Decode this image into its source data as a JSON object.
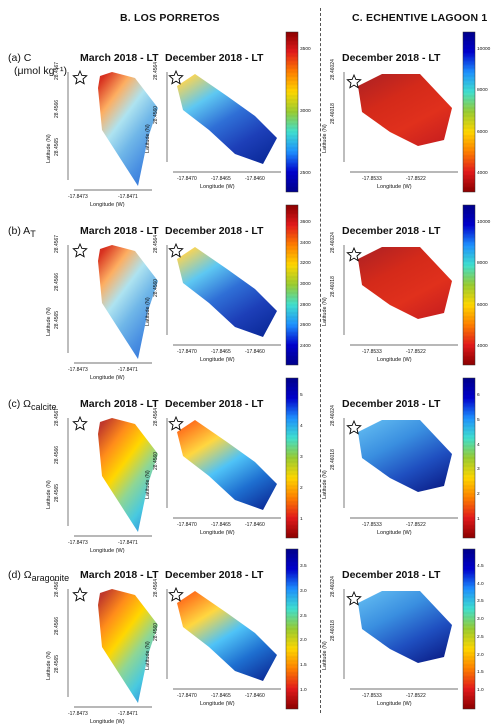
{
  "sections": {
    "left": "B. LOS PORRETOS",
    "right": "C. ECHENTIVE LAGOON 1"
  },
  "rows": [
    {
      "label_prefix": "(a) C",
      "label_sub": "",
      "label_line2": "(μmol kg⁻¹)",
      "panels": [
        {
          "title": "March 2018 - LT",
          "lat_ticks": [
            "28.4567",
            "28.4566",
            "28.4565"
          ],
          "lon_ticks": [
            "-17.8473",
            "-17.8471"
          ],
          "cb_ticks": []
        },
        {
          "title": "December 2018 - LT",
          "lat_ticks": [
            "28.4564",
            "28.4560"
          ],
          "lon_ticks": [
            "-17.8470",
            "-17.8465",
            "-17.8460"
          ],
          "cb_ticks": [
            "3500",
            "3000",
            "2500"
          ]
        },
        {
          "title": "December 2018 - LT",
          "lat_ticks": [
            "28.46024",
            "28.46018"
          ],
          "lon_ticks": [
            "-17.8533",
            "-17.8522"
          ],
          "cb_ticks": [
            "10000",
            "8000",
            "6000",
            "4000"
          ]
        }
      ]
    },
    {
      "label_prefix": "(b) A",
      "label_sub": "T",
      "label_line2": "",
      "panels": [
        {
          "title": "March 2018 - LT",
          "lat_ticks": [
            "28.4567",
            "28.4566",
            "28.4565"
          ],
          "lon_ticks": [
            "-17.8473",
            "-17.8471"
          ],
          "cb_ticks": []
        },
        {
          "title": "December 2018 - LT",
          "lat_ticks": [
            "28.4564",
            "28.4560"
          ],
          "lon_ticks": [
            "-17.8470",
            "-17.8465",
            "-17.8460"
          ],
          "cb_ticks": [
            "3600",
            "3400",
            "3200",
            "3000",
            "2800",
            "2600",
            "2400"
          ]
        },
        {
          "title": "December 2018 - LT",
          "lat_ticks": [
            "28.46024",
            "28.46018"
          ],
          "lon_ticks": [
            "-17.8533",
            "-17.8522"
          ],
          "cb_ticks": [
            "10000",
            "8000",
            "6000",
            "4000"
          ]
        }
      ]
    },
    {
      "label_prefix": "(c) Ω",
      "label_sub": "calcite",
      "label_line2": "",
      "panels": [
        {
          "title": "March 2018 - LT",
          "lat_ticks": [
            "28.4567",
            "28.4566",
            "28.4565"
          ],
          "lon_ticks": [
            "-17.8473",
            "-17.8471"
          ],
          "cb_ticks": []
        },
        {
          "title": "December 2018 - LT",
          "lat_ticks": [
            "28.4564",
            "28.4560"
          ],
          "lon_ticks": [
            "-17.8470",
            "-17.8465",
            "-17.8460"
          ],
          "cb_ticks": [
            "5",
            "4",
            "3",
            "2",
            "1"
          ]
        },
        {
          "title": "December 2018 - LT",
          "lat_ticks": [
            "28.46024",
            "28.46018"
          ],
          "lon_ticks": [
            "-17.8533",
            "-17.8522"
          ],
          "cb_ticks": [
            "6",
            "5",
            "4",
            "3",
            "2",
            "1"
          ]
        }
      ]
    },
    {
      "label_prefix": "(d) Ω",
      "label_sub": "aragonite",
      "label_line2": "",
      "panels": [
        {
          "title": "March 2018 - LT",
          "lat_ticks": [
            "28.4567",
            "28.4566",
            "28.4565"
          ],
          "lon_ticks": [
            "-17.8473",
            "-17.8471"
          ],
          "cb_ticks": []
        },
        {
          "title": "December 2018 - LT",
          "lat_ticks": [
            "28.4564",
            "28.4560"
          ],
          "lon_ticks": [
            "-17.8470",
            "-17.8465",
            "-17.8460"
          ],
          "cb_ticks": [
            "3.5",
            "3.0",
            "2.5",
            "2.0",
            "1.5",
            "1.0"
          ]
        },
        {
          "title": "December 2018 - LT",
          "lat_ticks": [
            "28.46024",
            "28.46018"
          ],
          "lon_ticks": [
            "-17.8533",
            "-17.8522"
          ],
          "cb_ticks": [
            "4.5",
            "4.0",
            "3.5",
            "3.0",
            "2.5",
            "2.0",
            "1.5",
            "1.0"
          ]
        }
      ]
    }
  ],
  "axis_labels": {
    "lat": "Latitude (N)",
    "lon": "Longitude (W)"
  },
  "marker": {
    "name": "star-icon"
  },
  "colormaps": {
    "jet_reversed": [
      "#8b0000",
      "#e31a1c",
      "#ff7f00",
      "#ffd700",
      "#9acd32",
      "#40e0d0",
      "#1e90ff",
      "#0000cd",
      "#00008b"
    ],
    "jet": [
      "#00008b",
      "#0000cd",
      "#1e90ff",
      "#40e0d0",
      "#9acd32",
      "#ffd700",
      "#ff7f00",
      "#e31a1c",
      "#8b0000"
    ]
  }
}
